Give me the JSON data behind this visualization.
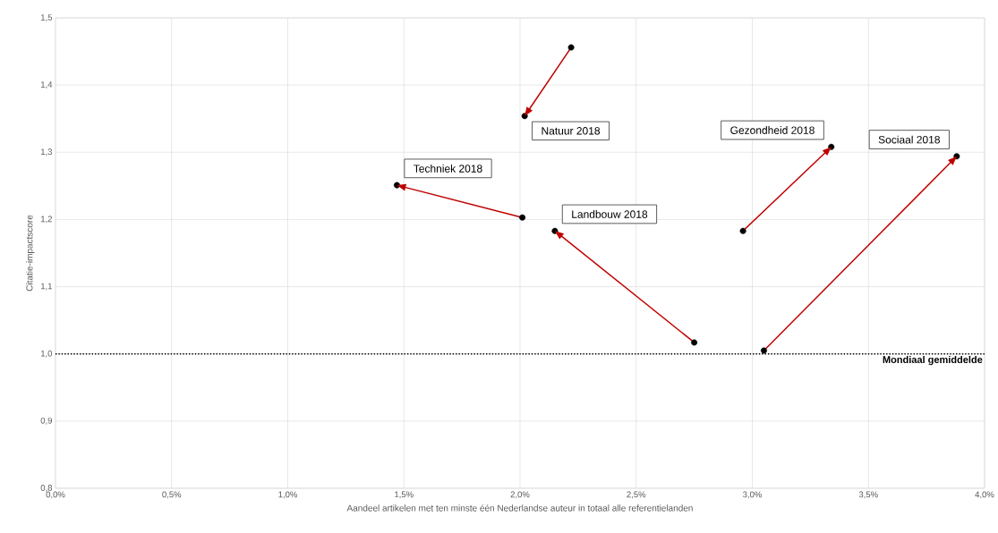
{
  "chart_data": {
    "type": "line",
    "xlabel": "Aandeel artikelen met ten minste één Nederlandse auteur in totaal alle referentielanden",
    "ylabel": "Citatie-impactscore",
    "series": [
      {
        "name": "Natuur 2018",
        "color": "#c00000",
        "x": [
          2.22,
          2.02
        ],
        "values": [
          1.456,
          1.354
        ]
      },
      {
        "name": "Techniek 2018",
        "color": "#c00000",
        "x": [
          2.01,
          1.47
        ],
        "values": [
          1.203,
          1.251
        ]
      },
      {
        "name": "Landbouw 2018",
        "color": "#c00000",
        "x": [
          2.75,
          2.15
        ],
        "values": [
          1.017,
          1.183
        ]
      },
      {
        "name": "Gezondheid 2018",
        "color": "#c00000",
        "x": [
          2.96,
          3.34
        ],
        "values": [
          1.183,
          1.308
        ]
      },
      {
        "name": "Sociaal 2018",
        "color": "#c00000",
        "x": [
          3.05,
          3.88
        ],
        "values": [
          1.005,
          1.294
        ]
      }
    ],
    "marker": "circle",
    "xlim": [
      0,
      4
    ],
    "ylim": [
      0.8,
      1.5
    ],
    "xticks": [
      {
        "value": 0,
        "label": "0,0%"
      },
      {
        "value": 0.5,
        "label": "0,5%"
      },
      {
        "value": 1,
        "label": "1,0%"
      },
      {
        "value": 1.5,
        "label": "1,5%"
      },
      {
        "value": 2,
        "label": "2,0%"
      },
      {
        "value": 2.5,
        "label": "2,5%"
      },
      {
        "value": 3,
        "label": "3,0%"
      },
      {
        "value": 3.5,
        "label": "3,5%"
      },
      {
        "value": 4,
        "label": "4,0%"
      }
    ],
    "yticks": [
      {
        "value": 0.8,
        "label": "0,8"
      },
      {
        "value": 0.9,
        "label": "0,9"
      },
      {
        "value": 1.0,
        "label": "1,0"
      },
      {
        "value": 1.1,
        "label": "1,1"
      },
      {
        "value": 1.2,
        "label": "1,2"
      },
      {
        "value": 1.3,
        "label": "1,3"
      },
      {
        "value": 1.4,
        "label": "1,4"
      },
      {
        "value": 1.5,
        "label": "1,5"
      }
    ],
    "grid": true,
    "ref_lines": [
      {
        "axis": "y",
        "value": 1.0,
        "label": "Mondiaal gemiddelde",
        "color": "#000000",
        "line_style": "dotted"
      }
    ]
  }
}
